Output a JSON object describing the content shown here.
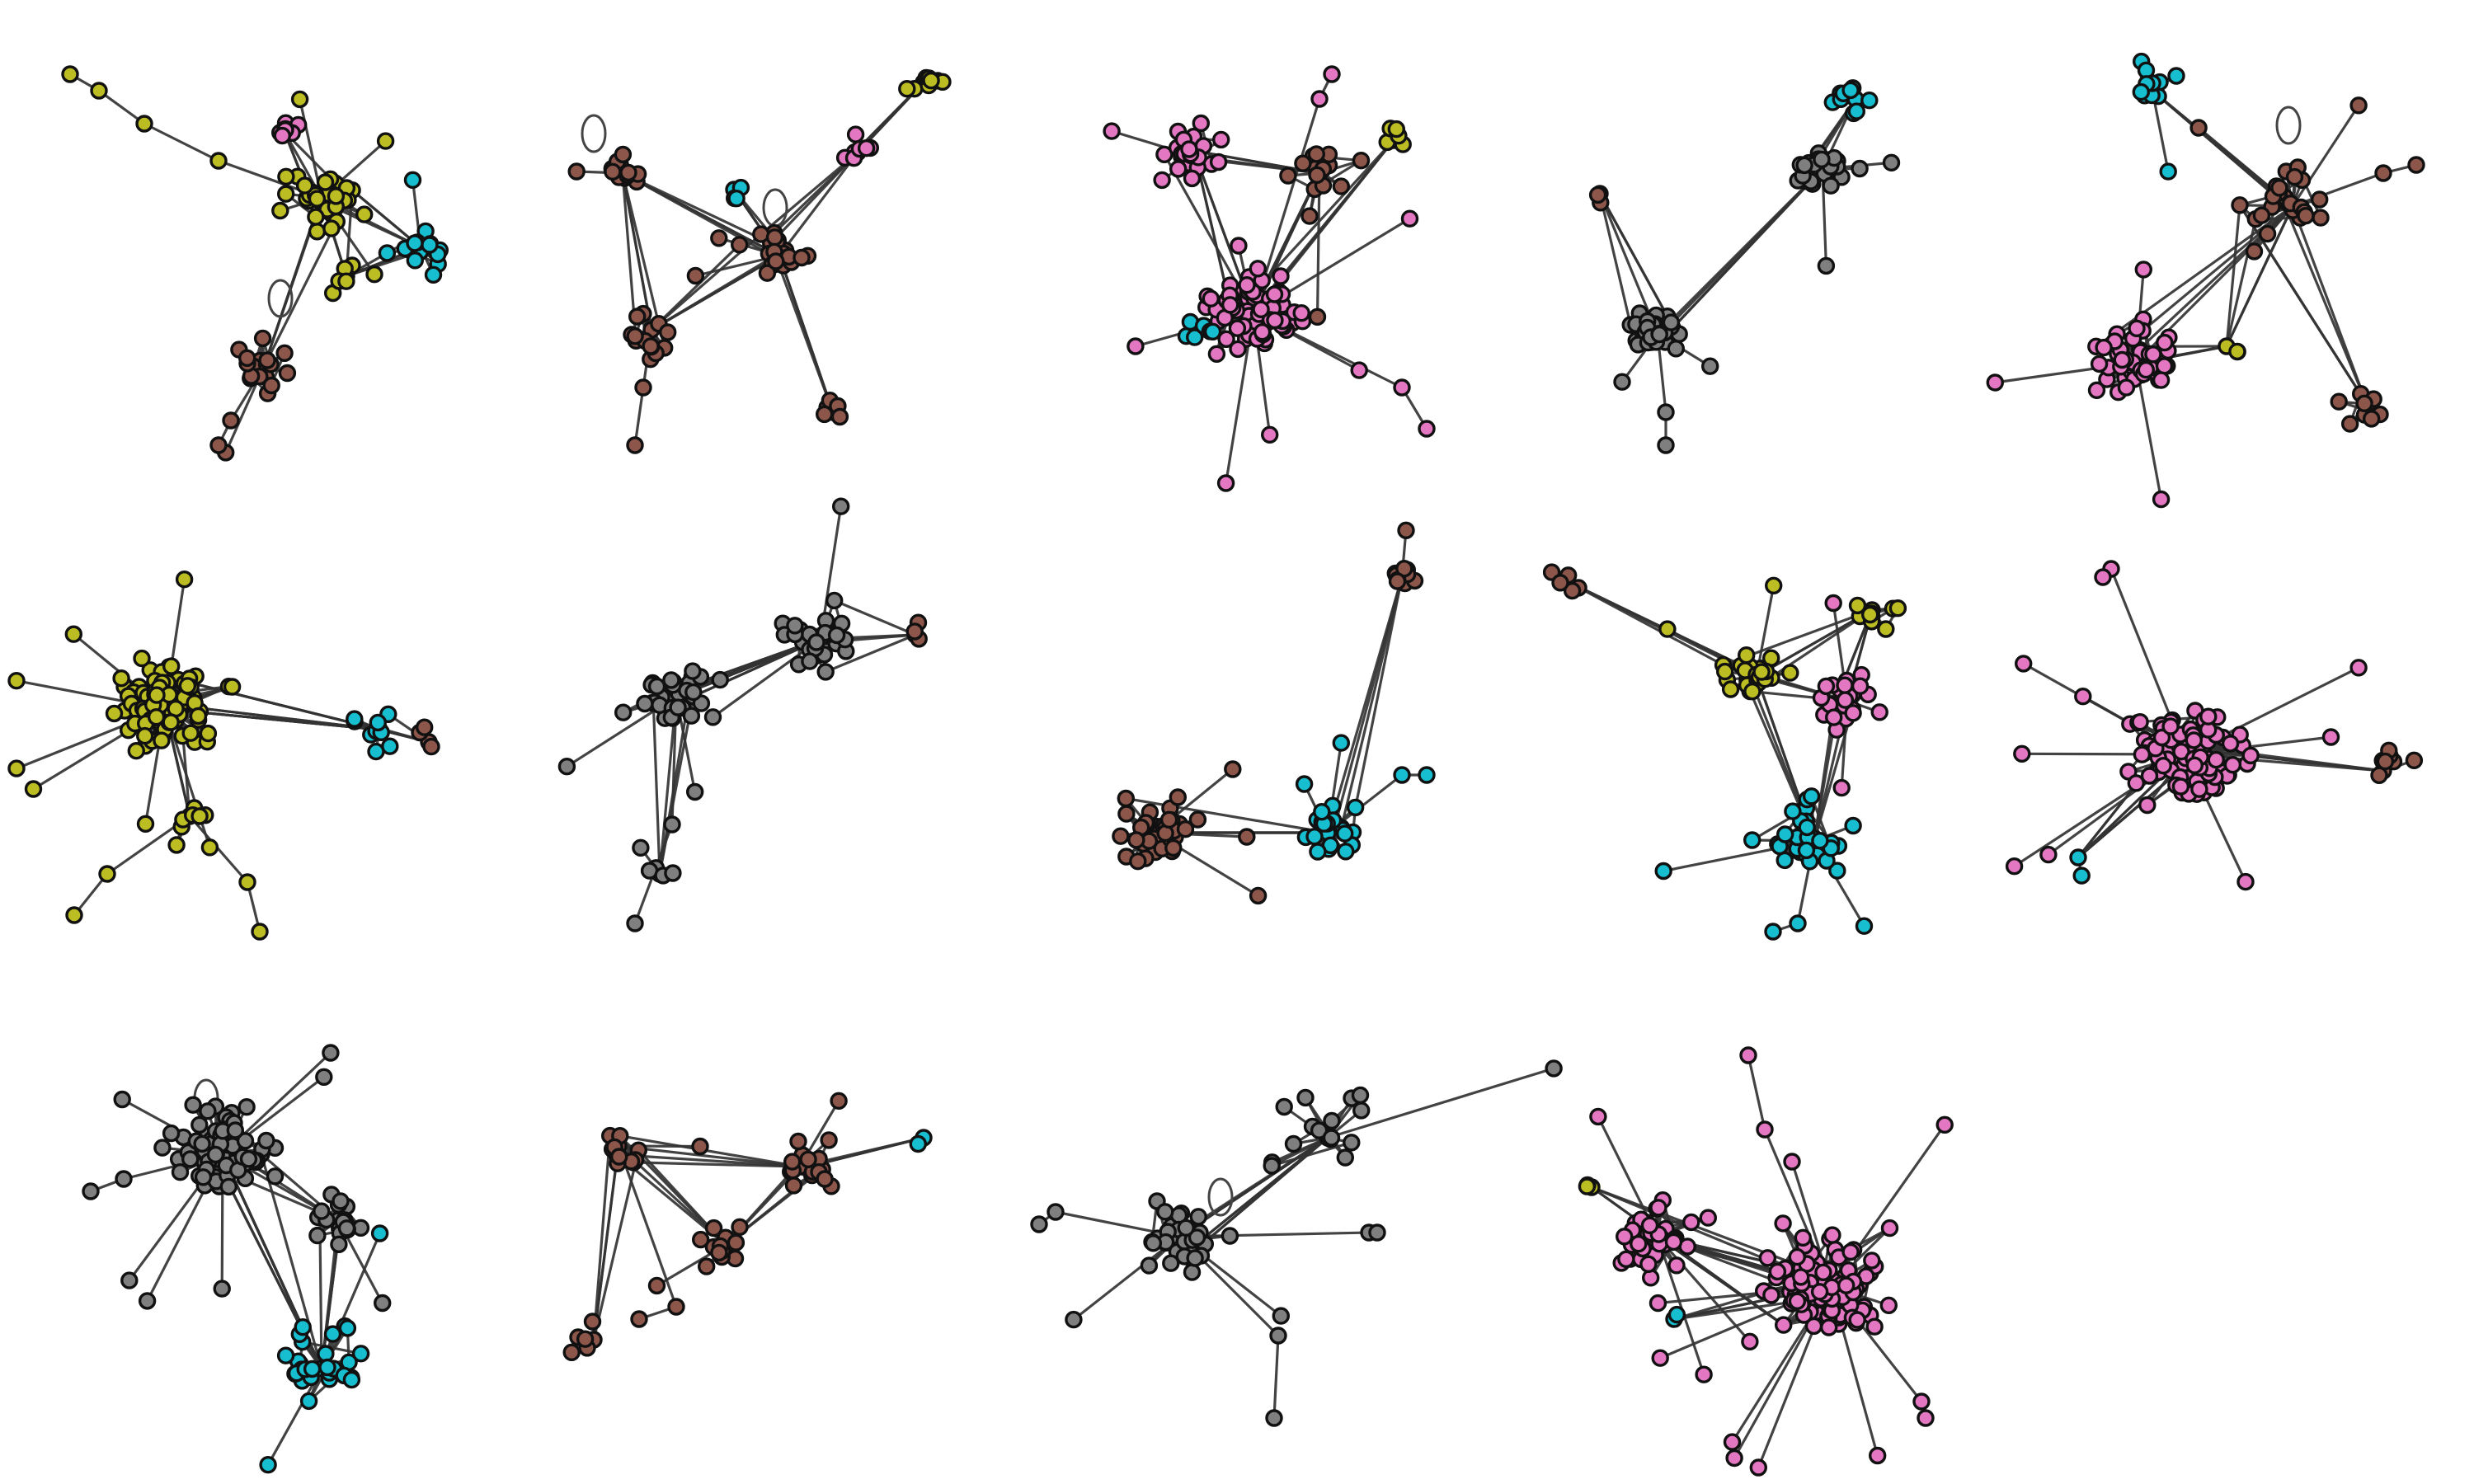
{
  "figure": {
    "panel_count": 14,
    "colors": {
      "olive": "#bcbd22",
      "pink": "#e377c2",
      "brown": "#8c564b",
      "gray": "#7f7f7f",
      "cyan": "#17becf",
      "edge": "#333333",
      "node_outline": "#111111",
      "background": "#ffffff"
    },
    "panels": [
      {
        "id": "graph-1",
        "clusters": [
          {
            "color": "olive",
            "size": 40
          },
          {
            "color": "cyan",
            "size": 16
          },
          {
            "color": "pink",
            "size": 8
          },
          {
            "color": "brown",
            "size": 18
          },
          {
            "color": "olive",
            "size": 6
          }
        ]
      },
      {
        "id": "graph-2",
        "clusters": [
          {
            "color": "brown",
            "size": 24
          },
          {
            "color": "brown",
            "size": 14
          },
          {
            "color": "brown",
            "size": 12
          },
          {
            "color": "pink",
            "size": 8
          },
          {
            "color": "olive",
            "size": 10
          },
          {
            "color": "cyan",
            "size": 4
          },
          {
            "color": "brown",
            "size": 8
          }
        ]
      },
      {
        "id": "graph-3",
        "clusters": [
          {
            "color": "pink",
            "size": 80
          },
          {
            "color": "pink",
            "size": 22
          },
          {
            "color": "cyan",
            "size": 8
          },
          {
            "color": "brown",
            "size": 16
          },
          {
            "color": "olive",
            "size": 6
          }
        ]
      },
      {
        "id": "graph-4",
        "clusters": [
          {
            "color": "gray",
            "size": 34
          },
          {
            "color": "gray",
            "size": 24
          },
          {
            "color": "cyan",
            "size": 10
          },
          {
            "color": "brown",
            "size": 3
          }
        ]
      },
      {
        "id": "graph-5",
        "clusters": [
          {
            "color": "pink",
            "size": 44
          },
          {
            "color": "brown",
            "size": 26
          },
          {
            "color": "cyan",
            "size": 14
          },
          {
            "color": "brown",
            "size": 10
          },
          {
            "color": "olive",
            "size": 3
          }
        ]
      },
      {
        "id": "graph-6",
        "clusters": [
          {
            "color": "olive",
            "size": 90
          },
          {
            "color": "cyan",
            "size": 10
          },
          {
            "color": "brown",
            "size": 4
          },
          {
            "color": "olive",
            "size": 8
          }
        ]
      },
      {
        "id": "graph-7",
        "clusters": [
          {
            "color": "gray",
            "size": 34
          },
          {
            "color": "gray",
            "size": 30
          },
          {
            "color": "brown",
            "size": 4
          },
          {
            "color": "gray",
            "size": 6
          }
        ]
      },
      {
        "id": "graph-8",
        "clusters": [
          {
            "color": "brown",
            "size": 40
          },
          {
            "color": "cyan",
            "size": 22
          },
          {
            "color": "brown",
            "size": 12
          }
        ]
      },
      {
        "id": "graph-9",
        "clusters": [
          {
            "color": "olive",
            "size": 30
          },
          {
            "color": "pink",
            "size": 24
          },
          {
            "color": "cyan",
            "size": 34
          },
          {
            "color": "brown",
            "size": 6
          },
          {
            "color": "olive",
            "size": 10
          }
        ]
      },
      {
        "id": "graph-10",
        "clusters": [
          {
            "color": "pink",
            "size": 100
          },
          {
            "color": "cyan",
            "size": 2
          },
          {
            "color": "brown",
            "size": 8
          }
        ]
      },
      {
        "id": "graph-11",
        "clusters": [
          {
            "color": "gray",
            "size": 80
          },
          {
            "color": "gray",
            "size": 20
          },
          {
            "color": "cyan",
            "size": 28
          }
        ]
      },
      {
        "id": "graph-12",
        "clusters": [
          {
            "color": "brown",
            "size": 12
          },
          {
            "color": "brown",
            "size": 16
          },
          {
            "color": "brown",
            "size": 14
          },
          {
            "color": "brown",
            "size": 6
          },
          {
            "color": "cyan",
            "size": 2
          }
        ]
      },
      {
        "id": "graph-13",
        "clusters": [
          {
            "color": "gray",
            "size": 34
          },
          {
            "color": "gray",
            "size": 16
          }
        ]
      },
      {
        "id": "graph-14",
        "clusters": [
          {
            "color": "pink",
            "size": 110
          },
          {
            "color": "pink",
            "size": 36
          },
          {
            "color": "olive",
            "size": 3
          },
          {
            "color": "cyan",
            "size": 2
          }
        ]
      }
    ]
  }
}
